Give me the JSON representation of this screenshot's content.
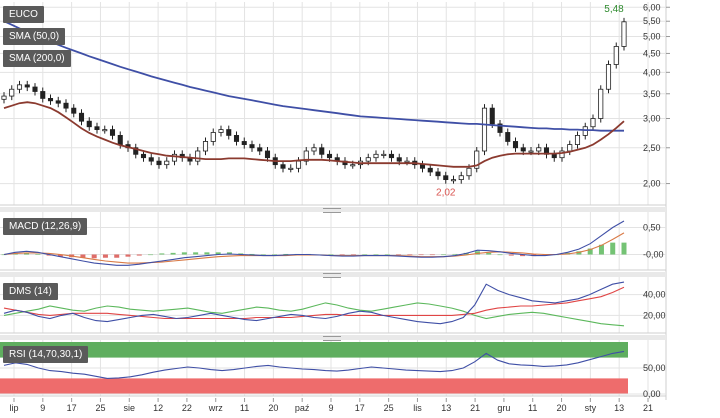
{
  "colors": {
    "candle_up": "#ffffff",
    "candle_down": "#222222",
    "sma50": "#8b3a2f",
    "sma200": "#3f4fa6",
    "macd_line": "#3f4fa6",
    "macd_signal": "#d97a46",
    "macd_hist": "#5cb85c",
    "macd_hist_neg": "#d9534f",
    "dmi_plus": "#3f4fa6",
    "dmi_minus": "#5cb85c",
    "adx": "#e04545",
    "rsi_line": "#3f4fa6",
    "rsi_overbought": "#5fae5f",
    "rsi_oversold": "#ee6c6c",
    "grid": "#e3e3e3",
    "high_label": "#2e8b2e",
    "low_label": "#d9534f"
  },
  "panels": {
    "main": {
      "labels": [
        "EUCO",
        "SMA (50,0)",
        "SMA (200,0)"
      ]
    },
    "macd": {
      "label": "MACD (12,26,9)"
    },
    "dms": {
      "label": "DMS (14)"
    },
    "rsi": {
      "label": "RSI (14,70,30,1)"
    }
  },
  "chart_data": [
    {
      "type": "candlestick",
      "title": "EUCO",
      "scale": "log",
      "ylim": [
        1.75,
        6.2
      ],
      "yticks": [
        "6,00",
        "5,50",
        "5,00",
        "4,50",
        "4,00",
        "3,50",
        "3,00",
        "2,50",
        "2,00"
      ],
      "ytick_values": [
        6.0,
        5.5,
        5.0,
        4.5,
        4.0,
        3.5,
        3.0,
        2.5,
        2.0
      ],
      "x_ticks": [
        "lip",
        "9",
        "17",
        "25",
        "sie",
        "12",
        "22",
        "wrz",
        "11",
        "20",
        "paź",
        "9",
        "17",
        "25",
        "lis",
        "13",
        "21",
        "gru",
        "11",
        "20",
        "sty",
        "13",
        "21"
      ],
      "annotations": {
        "high": "5,48",
        "low": "2,02"
      },
      "close": [
        3.45,
        3.6,
        3.7,
        3.65,
        3.55,
        3.4,
        3.35,
        3.3,
        3.2,
        3.1,
        2.95,
        2.85,
        2.8,
        2.8,
        2.7,
        2.55,
        2.5,
        2.4,
        2.35,
        2.3,
        2.25,
        2.3,
        2.4,
        2.35,
        2.3,
        2.45,
        2.6,
        2.75,
        2.8,
        2.7,
        2.6,
        2.55,
        2.5,
        2.45,
        2.35,
        2.25,
        2.2,
        2.2,
        2.3,
        2.45,
        2.5,
        2.4,
        2.35,
        2.3,
        2.25,
        2.25,
        2.3,
        2.35,
        2.4,
        2.4,
        2.35,
        2.3,
        2.3,
        2.25,
        2.2,
        2.15,
        2.1,
        2.05,
        2.05,
        2.1,
        2.2,
        2.45,
        3.2,
        2.9,
        2.75,
        2.6,
        2.5,
        2.45,
        2.45,
        2.5,
        2.4,
        2.35,
        2.45,
        2.55,
        2.7,
        2.85,
        3.0,
        3.6,
        4.2,
        4.7,
        5.48
      ],
      "sma50": [
        3.2,
        3.25,
        3.3,
        3.32,
        3.3,
        3.25,
        3.2,
        3.12,
        3.02,
        2.92,
        2.82,
        2.74,
        2.68,
        2.63,
        2.58,
        2.54,
        2.51,
        2.48,
        2.45,
        2.42,
        2.4,
        2.38,
        2.37,
        2.36,
        2.35,
        2.34,
        2.33,
        2.33,
        2.33,
        2.34,
        2.34,
        2.34,
        2.33,
        2.32,
        2.31,
        2.3,
        2.3,
        2.3,
        2.31,
        2.32,
        2.32,
        2.32,
        2.31,
        2.3,
        2.29,
        2.28,
        2.27,
        2.27,
        2.27,
        2.27,
        2.27,
        2.27,
        2.27,
        2.27,
        2.26,
        2.25,
        2.24,
        2.23,
        2.22,
        2.22,
        2.22,
        2.24,
        2.3,
        2.35,
        2.38,
        2.4,
        2.41,
        2.41,
        2.41,
        2.41,
        2.41,
        2.41,
        2.42,
        2.44,
        2.47,
        2.5,
        2.55,
        2.63,
        2.72,
        2.83,
        2.95
      ],
      "sma200": [
        5.5,
        5.38,
        5.26,
        5.15,
        5.04,
        4.94,
        4.84,
        4.75,
        4.66,
        4.58,
        4.5,
        4.42,
        4.35,
        4.28,
        4.21,
        4.14,
        4.08,
        4.02,
        3.96,
        3.9,
        3.85,
        3.8,
        3.75,
        3.7,
        3.65,
        3.61,
        3.57,
        3.53,
        3.49,
        3.45,
        3.42,
        3.39,
        3.36,
        3.33,
        3.3,
        3.27,
        3.24,
        3.22,
        3.2,
        3.18,
        3.16,
        3.14,
        3.12,
        3.1,
        3.08,
        3.06,
        3.04,
        3.03,
        3.02,
        3.01,
        3.0,
        2.99,
        2.98,
        2.97,
        2.96,
        2.95,
        2.94,
        2.93,
        2.92,
        2.91,
        2.9,
        2.9,
        2.89,
        2.88,
        2.87,
        2.86,
        2.85,
        2.84,
        2.83,
        2.82,
        2.82,
        2.81,
        2.81,
        2.8,
        2.8,
        2.79,
        2.79,
        2.78,
        2.78,
        2.78,
        2.78
      ]
    },
    {
      "type": "line",
      "title": "MACD (12,26,9)",
      "ylim": [
        -0.25,
        0.75
      ],
      "yticks": [
        "0,50",
        "-0,00"
      ],
      "ytick_values": [
        0.5,
        0.0
      ],
      "macd": [
        0.0,
        0.04,
        0.06,
        0.04,
        0.0,
        -0.04,
        -0.08,
        -0.12,
        -0.16,
        -0.18,
        -0.2,
        -0.2,
        -0.18,
        -0.15,
        -0.12,
        -0.09,
        -0.06,
        -0.04,
        -0.02,
        0.0,
        0.01,
        0.0,
        -0.01,
        -0.02,
        -0.02,
        -0.01,
        0.0,
        0.0,
        -0.01,
        -0.02,
        -0.03,
        -0.03,
        -0.02,
        -0.02,
        -0.02,
        -0.03,
        -0.04,
        -0.05,
        -0.05,
        -0.04,
        -0.02,
        0.02,
        0.08,
        0.07,
        0.05,
        0.02,
        0.0,
        -0.02,
        -0.02,
        0.0,
        0.04,
        0.1,
        0.2,
        0.35,
        0.5,
        0.62
      ],
      "signal": [
        0.0,
        0.02,
        0.03,
        0.03,
        0.02,
        0.0,
        -0.03,
        -0.06,
        -0.09,
        -0.12,
        -0.14,
        -0.16,
        -0.16,
        -0.15,
        -0.14,
        -0.12,
        -0.1,
        -0.08,
        -0.06,
        -0.04,
        -0.03,
        -0.02,
        -0.02,
        -0.02,
        -0.02,
        -0.02,
        -0.01,
        -0.01,
        -0.01,
        -0.02,
        -0.02,
        -0.02,
        -0.02,
        -0.02,
        -0.02,
        -0.02,
        -0.03,
        -0.04,
        -0.04,
        -0.04,
        -0.03,
        -0.01,
        0.02,
        0.04,
        0.05,
        0.04,
        0.03,
        0.01,
        0.0,
        0.0,
        0.01,
        0.04,
        0.09,
        0.17,
        0.28,
        0.4
      ]
    },
    {
      "type": "line",
      "title": "DMS (14)",
      "ylim": [
        5,
        55
      ],
      "yticks": [
        "40,00",
        "20,00"
      ],
      "ytick_values": [
        40,
        20
      ],
      "dmi_plus": [
        22,
        25,
        23,
        19,
        17,
        20,
        22,
        18,
        15,
        14,
        16,
        18,
        20,
        21,
        19,
        17,
        18,
        20,
        22,
        20,
        18,
        16,
        15,
        17,
        19,
        21,
        20,
        18,
        17,
        19,
        22,
        24,
        23,
        20,
        18,
        16,
        14,
        13,
        12,
        14,
        18,
        30,
        50,
        44,
        40,
        37,
        34,
        33,
        32,
        34,
        36,
        40,
        45,
        50,
        52
      ],
      "dmi_minus": [
        20,
        22,
        24,
        26,
        29,
        27,
        25,
        24,
        27,
        29,
        28,
        26,
        25,
        24,
        25,
        26,
        27,
        25,
        23,
        22,
        24,
        26,
        28,
        27,
        25,
        24,
        26,
        29,
        32,
        30,
        27,
        25,
        24,
        26,
        28,
        30,
        32,
        31,
        29,
        27,
        24,
        20,
        17,
        19,
        21,
        22,
        23,
        22,
        20,
        18,
        16,
        14,
        12,
        11,
        10
      ],
      "adx": [
        27,
        25,
        23,
        21,
        20,
        21,
        22,
        22,
        22,
        22,
        21,
        20,
        19,
        18,
        17,
        17,
        17,
        17,
        17,
        17,
        17,
        17,
        18,
        18,
        18,
        18,
        19,
        20,
        21,
        21,
        20,
        20,
        20,
        20,
        20,
        20,
        20,
        20,
        20,
        20,
        21,
        22,
        25,
        27,
        28,
        29,
        29,
        30,
        31,
        32,
        34,
        36,
        38,
        42,
        47
      ]
    },
    {
      "type": "line",
      "title": "RSI (14,70,30,1)",
      "ylim": [
        0,
        100
      ],
      "yticks": [
        "50,00",
        "0,00"
      ],
      "ytick_values": [
        50,
        0
      ],
      "zones": {
        "overbought": 70,
        "oversold": 30
      },
      "rsi": [
        55,
        60,
        57,
        50,
        45,
        43,
        40,
        38,
        34,
        30,
        31,
        33,
        37,
        42,
        46,
        49,
        52,
        50,
        47,
        45,
        47,
        50,
        53,
        55,
        52,
        50,
        48,
        47,
        45,
        44,
        46,
        49,
        52,
        50,
        48,
        46,
        45,
        44,
        43,
        45,
        50,
        62,
        78,
        65,
        58,
        56,
        55,
        53,
        54,
        56,
        60,
        66,
        72,
        78,
        82
      ]
    }
  ]
}
